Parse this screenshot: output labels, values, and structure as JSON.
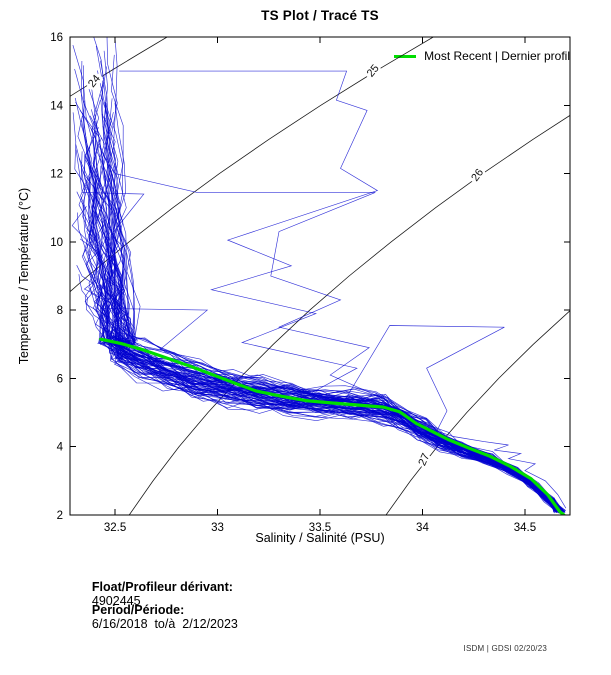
{
  "title": "TS Plot / Tracé TS",
  "legend": {
    "label": "Most Recent | Dernier profil"
  },
  "footer": {
    "float_label": "Float/Profileur dérivant:",
    "float_value": "4902445",
    "period_label": "Period/Période:",
    "period_value": "6/16/2018  to/à  2/12/2023"
  },
  "watermark": "ISDM | GDSI 02/20/23",
  "chart_data": {
    "type": "line",
    "title": "TS Plot / Tracé TS",
    "xlabel": "Salinity / Salinité (PSU)",
    "ylabel": "Temperature / Température (°C)",
    "xlim": [
      32.28,
      34.72
    ],
    "ylim": [
      2,
      16
    ],
    "grid": false,
    "legend_position": "top-right",
    "x_ticks": [
      {
        "v": 32.5,
        "label": "32.5"
      },
      {
        "v": 33.0,
        "label": "33"
      },
      {
        "v": 33.5,
        "label": "33.5"
      },
      {
        "v": 34.0,
        "label": "34"
      },
      {
        "v": 34.5,
        "label": "34.5"
      }
    ],
    "y_ticks": [
      {
        "v": 2,
        "label": "2"
      },
      {
        "v": 4,
        "label": "4"
      },
      {
        "v": 6,
        "label": "6"
      },
      {
        "v": 8,
        "label": "8"
      },
      {
        "v": 10,
        "label": "10"
      },
      {
        "v": 12,
        "label": "12"
      },
      {
        "v": 14,
        "label": "14"
      },
      {
        "v": 16,
        "label": "16"
      }
    ],
    "colors": {
      "profiles": "#0000d0",
      "recent": "#00dd00",
      "contours": "#1a1a1a",
      "frame": "#000000"
    },
    "density_contours": [
      {
        "label": "24",
        "label_pos": [
          32.4,
          14.7
        ],
        "label_angle": -51,
        "points": [
          [
            32.21,
            14.0
          ],
          [
            32.343,
            14.5
          ],
          [
            32.477,
            15.0
          ],
          [
            32.614,
            15.5
          ],
          [
            32.754,
            16.0
          ],
          [
            32.825,
            16.3
          ]
        ]
      },
      {
        "label": "25",
        "label_pos": [
          33.76,
          15.0
        ],
        "label_angle": -50,
        "points": [
          [
            32.178,
            8.0
          ],
          [
            32.367,
            9.0
          ],
          [
            32.568,
            10.0
          ],
          [
            32.782,
            11.0
          ],
          [
            33.009,
            12.0
          ],
          [
            33.25,
            13.0
          ],
          [
            33.504,
            14.0
          ],
          [
            33.772,
            15.0
          ],
          [
            34.053,
            16.0
          ],
          [
            34.2,
            16.5
          ]
        ]
      },
      {
        "label": "26",
        "label_pos": [
          34.27,
          11.95
        ],
        "label_angle": -54,
        "points": [
          [
            32.569,
            2.0
          ],
          [
            32.685,
            3.0
          ],
          [
            32.812,
            4.0
          ],
          [
            32.953,
            5.0
          ],
          [
            33.106,
            6.0
          ],
          [
            33.272,
            7.0
          ],
          [
            33.45,
            8.0
          ],
          [
            33.642,
            9.0
          ],
          [
            33.847,
            10.0
          ],
          [
            34.064,
            11.0
          ],
          [
            34.294,
            12.0
          ],
          [
            34.539,
            13.0
          ],
          [
            34.796,
            14.0
          ]
        ]
      },
      {
        "label": "27",
        "label_pos": [
          34.01,
          3.62
        ],
        "label_angle": -66,
        "points": [
          [
            33.822,
            2.0
          ],
          [
            33.941,
            3.0
          ],
          [
            34.072,
            4.0
          ],
          [
            34.216,
            5.0
          ],
          [
            34.372,
            6.0
          ],
          [
            34.541,
            7.0
          ],
          [
            34.723,
            8.0
          ],
          [
            34.82,
            8.5
          ]
        ]
      }
    ],
    "recent_profile": {
      "name": "Most Recent | Dernier profil",
      "points_ST": [
        [
          32.43,
          7.15
        ],
        [
          32.53,
          7.02
        ],
        [
          32.63,
          6.85
        ],
        [
          32.75,
          6.6
        ],
        [
          32.87,
          6.35
        ],
        [
          32.99,
          6.08
        ],
        [
          33.09,
          5.85
        ],
        [
          33.19,
          5.63
        ],
        [
          33.31,
          5.48
        ],
        [
          33.43,
          5.35
        ],
        [
          33.56,
          5.28
        ],
        [
          33.69,
          5.22
        ],
        [
          33.81,
          5.16
        ],
        [
          33.89,
          5.02
        ],
        [
          33.97,
          4.68
        ],
        [
          34.05,
          4.44
        ],
        [
          34.13,
          4.2
        ],
        [
          34.23,
          3.95
        ],
        [
          34.33,
          3.72
        ],
        [
          34.43,
          3.42
        ],
        [
          34.53,
          3.06
        ],
        [
          34.61,
          2.6
        ],
        [
          34.67,
          2.1
        ],
        [
          34.69,
          2.0
        ]
      ]
    },
    "profile_ensemble": {
      "count": 82,
      "seed": 20230212,
      "surface_salinity_range": [
        32.3,
        32.5
      ],
      "surface_temp_range": [
        8.5,
        16.5
      ],
      "band_halfwidth_C": 0.8,
      "backbone_ST": [
        [
          32.5,
          6.9
        ],
        [
          32.62,
          6.55
        ],
        [
          32.76,
          6.2
        ],
        [
          32.9,
          5.95
        ],
        [
          33.05,
          5.72
        ],
        [
          33.2,
          5.55
        ],
        [
          33.35,
          5.42
        ],
        [
          33.5,
          5.32
        ],
        [
          33.65,
          5.24
        ],
        [
          33.8,
          5.12
        ],
        [
          33.9,
          4.85
        ],
        [
          34.0,
          4.5
        ],
        [
          34.1,
          4.15
        ],
        [
          34.2,
          3.9
        ],
        [
          34.32,
          3.65
        ],
        [
          34.44,
          3.3
        ],
        [
          34.54,
          2.9
        ],
        [
          34.62,
          2.45
        ],
        [
          34.67,
          2.1
        ]
      ]
    },
    "outlier_profiles_ST": [
      [
        [
          32.52,
          15.0
        ],
        [
          33.63,
          15.0
        ],
        [
          33.58,
          14.15
        ],
        [
          33.73,
          13.85
        ],
        [
          33.6,
          12.15
        ],
        [
          33.78,
          11.5
        ],
        [
          33.05,
          10.05
        ],
        [
          33.36,
          9.3
        ],
        [
          32.97,
          8.6
        ],
        [
          33.48,
          7.9
        ],
        [
          33.12,
          7.05
        ],
        [
          33.68,
          6.3
        ],
        [
          33.45,
          5.55
        ],
        [
          33.8,
          5.15
        ],
        [
          33.95,
          4.7
        ],
        [
          34.05,
          4.35
        ],
        [
          34.18,
          3.95
        ],
        [
          34.32,
          3.68
        ],
        [
          34.46,
          3.25
        ],
        [
          34.58,
          2.7
        ],
        [
          34.66,
          2.1
        ]
      ],
      [
        [
          32.38,
          9.0
        ],
        [
          32.42,
          8.0
        ],
        [
          32.6,
          7.2
        ],
        [
          32.85,
          6.6
        ],
        [
          33.1,
          6.05
        ],
        [
          33.4,
          5.6
        ],
        [
          33.62,
          5.35
        ],
        [
          33.84,
          7.55
        ],
        [
          34.4,
          7.5
        ],
        [
          34.02,
          6.3
        ],
        [
          34.12,
          5.05
        ],
        [
          34.06,
          4.35
        ],
        [
          34.22,
          3.9
        ],
        [
          34.38,
          3.5
        ],
        [
          34.52,
          2.95
        ],
        [
          34.63,
          2.35
        ],
        [
          34.68,
          2.0
        ]
      ],
      [
        [
          32.31,
          12.7
        ],
        [
          32.34,
          11.45
        ],
        [
          32.64,
          11.4
        ],
        [
          32.48,
          10.2
        ],
        [
          32.52,
          8.65
        ],
        [
          32.43,
          8.05
        ],
        [
          32.95,
          8.0
        ],
        [
          32.72,
          6.85
        ],
        [
          32.95,
          6.35
        ],
        [
          33.25,
          5.85
        ],
        [
          33.55,
          5.45
        ],
        [
          33.78,
          5.18
        ],
        [
          33.93,
          4.8
        ],
        [
          34.06,
          4.4
        ],
        [
          34.18,
          4.0
        ],
        [
          34.31,
          3.75
        ],
        [
          34.45,
          3.3
        ],
        [
          34.57,
          2.8
        ],
        [
          34.65,
          2.2
        ]
      ],
      [
        [
          32.44,
          13.4
        ],
        [
          32.5,
          12.0
        ],
        [
          32.9,
          11.45
        ],
        [
          33.77,
          11.45
        ],
        [
          33.3,
          10.3
        ],
        [
          33.26,
          9.0
        ],
        [
          33.6,
          8.3
        ],
        [
          33.3,
          7.5
        ],
        [
          33.74,
          6.9
        ],
        [
          33.55,
          6.1
        ],
        [
          33.85,
          5.3
        ],
        [
          34.0,
          4.55
        ],
        [
          34.1,
          4.2
        ],
        [
          34.25,
          3.85
        ],
        [
          34.4,
          3.4
        ],
        [
          34.55,
          2.85
        ],
        [
          34.64,
          2.3
        ]
      ],
      [
        [
          33.9,
          5.0
        ],
        [
          34.0,
          4.6
        ],
        [
          34.15,
          4.3
        ],
        [
          34.3,
          4.15
        ],
        [
          34.42,
          4.05
        ],
        [
          34.35,
          3.9
        ],
        [
          34.48,
          3.8
        ],
        [
          34.42,
          3.65
        ],
        [
          34.55,
          3.5
        ],
        [
          34.5,
          3.3
        ],
        [
          34.6,
          3.0
        ],
        [
          34.66,
          2.6
        ],
        [
          34.7,
          2.2
        ]
      ]
    ]
  }
}
